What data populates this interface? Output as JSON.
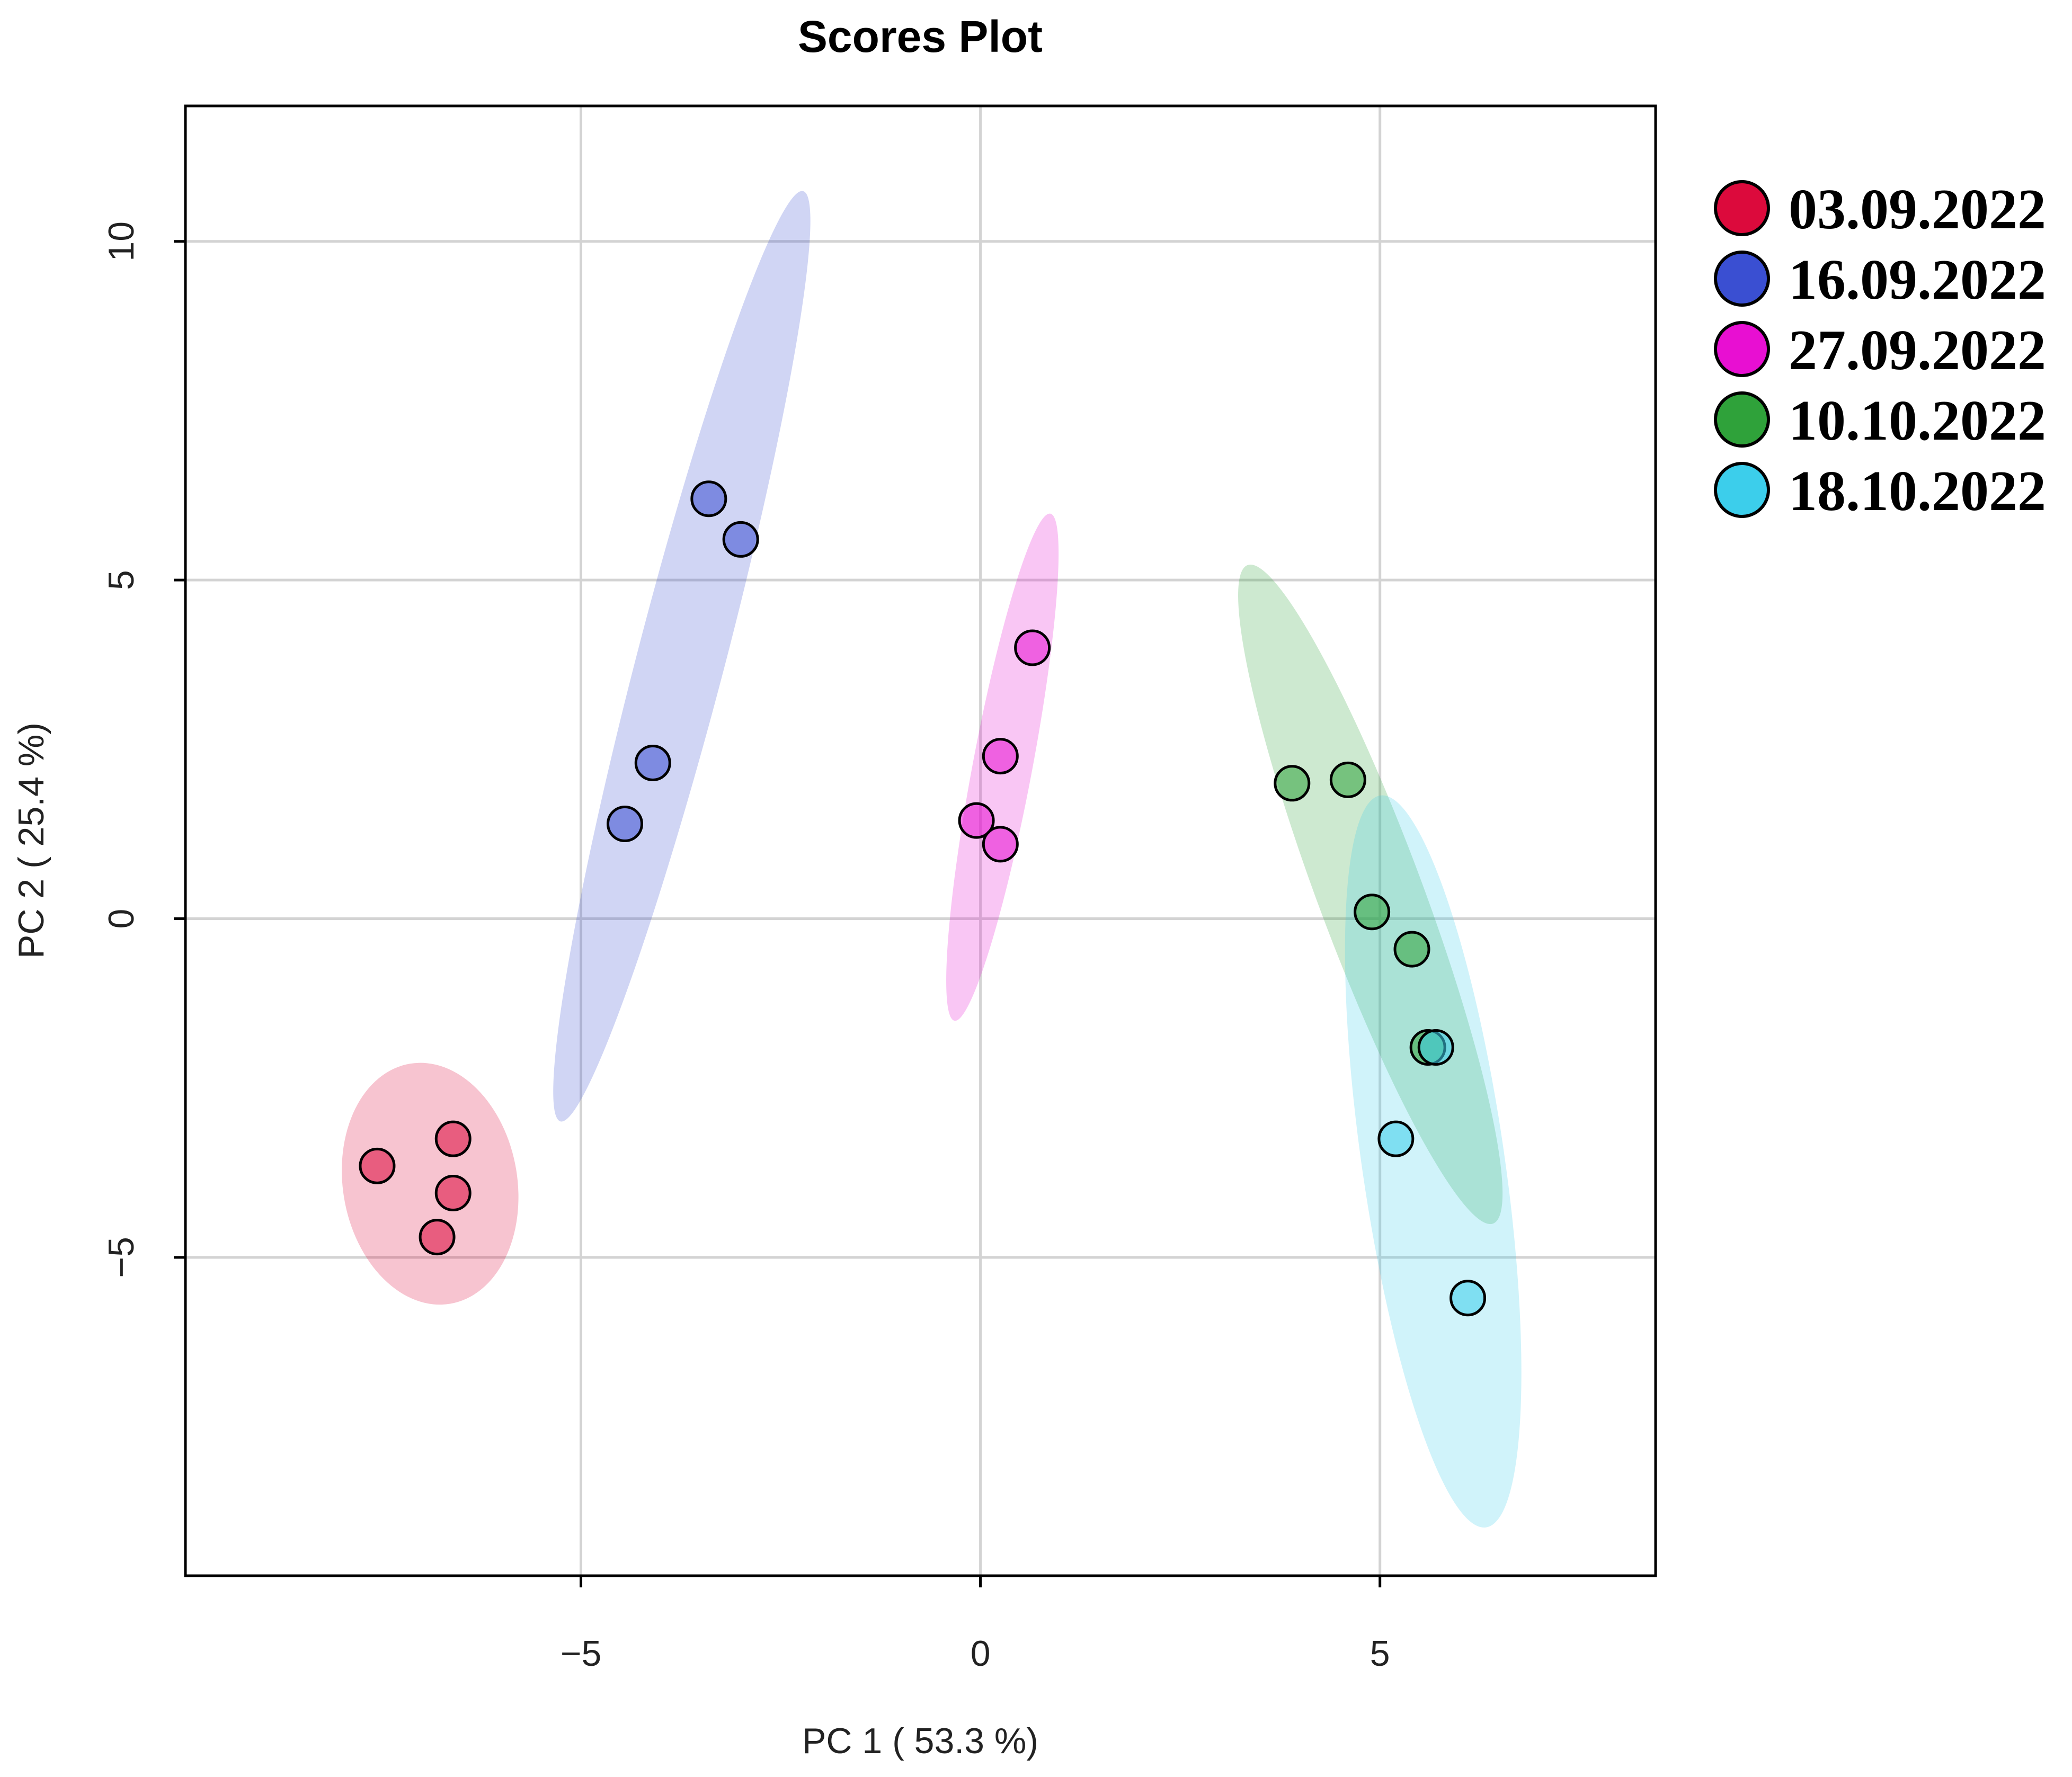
{
  "chart_data": {
    "type": "scatter",
    "title": "Scores Plot",
    "xlabel": "PC 1 ( 53.3 %)",
    "ylabel": "PC 2 ( 25.4 %)",
    "xlim": [
      -9.95,
      8.45
    ],
    "ylim": [
      -9.7,
      12.0
    ],
    "xticks": [
      -5,
      0,
      5
    ],
    "yticks": [
      -5,
      0,
      5,
      10
    ],
    "xtick_labels": [
      "−5",
      "0",
      "5"
    ],
    "ytick_labels": [
      "−5",
      "0",
      "5",
      "10"
    ],
    "grid": true,
    "legend_position": "right",
    "series": [
      {
        "name": "03.09.2022",
        "color": "#DC0A3C",
        "points": [
          [
            -7.55,
            -3.65
          ],
          [
            -6.6,
            -3.25
          ],
          [
            -6.6,
            -4.05
          ],
          [
            -6.8,
            -4.7
          ]
        ]
      },
      {
        "name": "16.09.2022",
        "color": "#3A4FD2",
        "points": [
          [
            -3.4,
            6.2
          ],
          [
            -3.0,
            5.6
          ],
          [
            -4.1,
            2.3
          ],
          [
            -4.45,
            1.4
          ]
        ]
      },
      {
        "name": "27.09.2022",
        "color": "#E80FD2",
        "points": [
          [
            0.65,
            4.0
          ],
          [
            0.25,
            2.4
          ],
          [
            -0.05,
            1.45
          ],
          [
            0.25,
            1.1
          ]
        ]
      },
      {
        "name": "10.10.2022",
        "color": "#2FA23A",
        "points": [
          [
            3.9,
            2.0
          ],
          [
            4.6,
            2.05
          ],
          [
            4.9,
            0.1
          ],
          [
            5.4,
            -0.45
          ],
          [
            5.6,
            -1.9
          ]
        ]
      },
      {
        "name": "18.10.2022",
        "color": "#3CCEEB",
        "points": [
          [
            5.7,
            -1.9
          ],
          [
            5.2,
            -3.25
          ],
          [
            6.1,
            -5.6
          ]
        ]
      }
    ]
  }
}
